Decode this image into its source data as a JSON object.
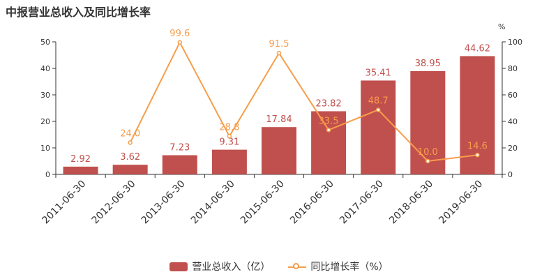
{
  "chart_data": {
    "type": "bar",
    "title": "中报营业总收入及同比增长率",
    "categories": [
      "2011-06-30",
      "2012-06-30",
      "2013-06-30",
      "2014-06-30",
      "2015-06-30",
      "2016-06-30",
      "2017-06-30",
      "2018-06-30",
      "2019-06-30"
    ],
    "series": [
      {
        "name": "营业总收入（亿）",
        "type": "bar",
        "axis": "left",
        "values": [
          2.92,
          3.62,
          7.23,
          9.31,
          17.84,
          23.82,
          35.41,
          38.95,
          44.62
        ],
        "labels": [
          "2.92",
          "3.62",
          "7.23",
          "9.31",
          "17.84",
          "23.82",
          "35.41",
          "38.95",
          "44.62"
        ]
      },
      {
        "name": "同比增长率（%）",
        "type": "line",
        "axis": "right",
        "values": [
          null,
          24.0,
          99.6,
          28.8,
          91.5,
          33.5,
          48.7,
          10.0,
          14.6
        ],
        "labels": [
          "",
          "24.0",
          "99.6",
          "28.8",
          "91.5",
          "33.5",
          "48.7",
          "10.0",
          "14.6"
        ]
      }
    ],
    "y_left": {
      "ylim": [
        0,
        50
      ],
      "ticks": [
        "0",
        "10",
        "20",
        "30",
        "40",
        "50"
      ]
    },
    "y_right": {
      "ylim": [
        0,
        100
      ],
      "ticks": [
        "0",
        "20",
        "40",
        "60",
        "80",
        "100"
      ],
      "unit": "%"
    },
    "legend_position": "bottom",
    "grid": false,
    "colors": {
      "bar": "#c0504d",
      "line": "#f79d4b"
    }
  }
}
